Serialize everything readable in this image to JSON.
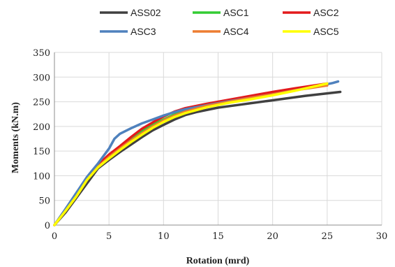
{
  "chart_data": {
    "type": "line",
    "title": "",
    "xlabel": "Rotation (mrd)",
    "ylabel": "Moments (kN.m)",
    "xlim": [
      0,
      30
    ],
    "ylim": [
      0,
      350
    ],
    "xticks": [
      0,
      5,
      10,
      15,
      20,
      25,
      30
    ],
    "yticks": [
      0,
      50,
      100,
      150,
      200,
      250,
      300,
      350
    ],
    "grid": true,
    "legend_position": "top",
    "series": [
      {
        "name": "ASS02",
        "color": "#404040",
        "points": [
          [
            0,
            0
          ],
          [
            1,
            25
          ],
          [
            2,
            55
          ],
          [
            3,
            85
          ],
          [
            4,
            115
          ],
          [
            5,
            132
          ],
          [
            6,
            148
          ],
          [
            7,
            163
          ],
          [
            8,
            178
          ],
          [
            9,
            192
          ],
          [
            10,
            203
          ],
          [
            11,
            214
          ],
          [
            12,
            223
          ],
          [
            13,
            229
          ],
          [
            15,
            238
          ],
          [
            17,
            244
          ],
          [
            20,
            253
          ],
          [
            23,
            262
          ],
          [
            26.2,
            270
          ]
        ]
      },
      {
        "name": "ASC1",
        "color": "#33cc33",
        "points": [
          [
            0,
            0
          ],
          [
            1,
            30
          ],
          [
            2,
            60
          ],
          [
            3,
            95
          ],
          [
            4,
            120
          ],
          [
            5,
            140
          ],
          [
            6,
            158
          ],
          [
            7,
            175
          ],
          [
            8,
            190
          ],
          [
            9,
            203
          ],
          [
            10,
            214
          ],
          [
            11,
            224
          ],
          [
            12,
            233
          ],
          [
            14,
            244
          ],
          [
            16,
            252
          ],
          [
            18,
            260
          ],
          [
            20,
            266
          ],
          [
            23,
            278
          ],
          [
            25,
            284
          ]
        ]
      },
      {
        "name": "ASC2",
        "color": "#e31a1c",
        "points": [
          [
            0,
            0
          ],
          [
            1,
            30
          ],
          [
            2,
            62
          ],
          [
            3,
            95
          ],
          [
            4,
            122
          ],
          [
            5,
            143
          ],
          [
            6,
            160
          ],
          [
            7,
            178
          ],
          [
            8,
            195
          ],
          [
            9,
            208
          ],
          [
            10,
            220
          ],
          [
            11,
            230
          ],
          [
            12,
            237
          ],
          [
            14,
            246
          ],
          [
            16,
            254
          ],
          [
            18,
            262
          ],
          [
            20,
            270
          ],
          [
            22,
            277
          ],
          [
            25,
            287
          ]
        ]
      },
      {
        "name": "ASC3",
        "color": "#4f81bd",
        "points": [
          [
            0,
            0
          ],
          [
            1,
            32
          ],
          [
            2,
            65
          ],
          [
            3,
            98
          ],
          [
            4,
            125
          ],
          [
            5,
            155
          ],
          [
            5.5,
            175
          ],
          [
            6,
            185
          ],
          [
            7,
            196
          ],
          [
            8,
            206
          ],
          [
            9,
            214
          ],
          [
            10,
            222
          ],
          [
            11,
            229
          ],
          [
            12,
            235
          ],
          [
            14,
            243
          ],
          [
            16,
            251
          ],
          [
            18,
            258
          ],
          [
            20,
            265
          ],
          [
            22,
            273
          ],
          [
            24,
            281
          ],
          [
            25.5,
            288
          ],
          [
            26,
            291
          ]
        ]
      },
      {
        "name": "ASC4",
        "color": "#ed7d31",
        "points": [
          [
            0,
            0
          ],
          [
            1,
            28
          ],
          [
            2,
            58
          ],
          [
            3,
            92
          ],
          [
            4,
            118
          ],
          [
            5,
            138
          ],
          [
            6,
            155
          ],
          [
            7,
            171
          ],
          [
            8,
            186
          ],
          [
            9,
            200
          ],
          [
            10,
            212
          ],
          [
            11,
            222
          ],
          [
            12,
            230
          ],
          [
            14,
            242
          ],
          [
            16,
            250
          ],
          [
            18,
            258
          ],
          [
            20,
            265
          ],
          [
            22,
            273
          ],
          [
            25,
            283
          ]
        ]
      },
      {
        "name": "ASC5",
        "color": "#ffff00",
        "points": [
          [
            0,
            0
          ],
          [
            1,
            28
          ],
          [
            2,
            58
          ],
          [
            3,
            92
          ],
          [
            4,
            117
          ],
          [
            5,
            135
          ],
          [
            6,
            152
          ],
          [
            7,
            168
          ],
          [
            8,
            183
          ],
          [
            9,
            197
          ],
          [
            10,
            209
          ],
          [
            11,
            219
          ],
          [
            12,
            227
          ],
          [
            14,
            239
          ],
          [
            16,
            248
          ],
          [
            18,
            255
          ],
          [
            20,
            263
          ],
          [
            22,
            272
          ],
          [
            25,
            287
          ]
        ]
      }
    ]
  }
}
